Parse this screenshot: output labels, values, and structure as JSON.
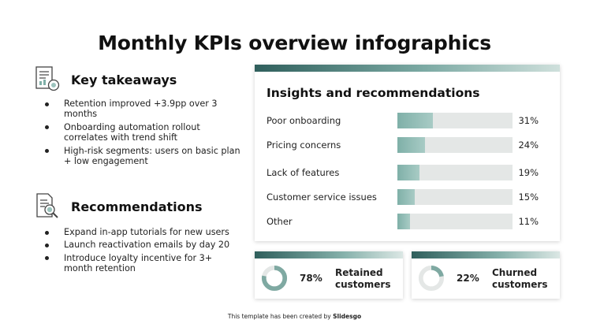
{
  "title": "Monthly KPIs overview infographics",
  "key_takeaways": {
    "heading": "Key takeaways",
    "icon": "report-icon",
    "items": [
      "Retention improved +3.9pp over 3 months",
      "Onboarding automation rollout correlates with trend shift",
      "High-risk segments: users on basic plan + low engagement"
    ]
  },
  "recommendations": {
    "heading": "Recommendations",
    "icon": "document-search-icon",
    "items": [
      "Expand in-app tutorials for new users",
      "Launch reactivation emails by day 20",
      "Introduce loyalty incentive for 3+ month retention"
    ]
  },
  "insights": {
    "title": "Insights and recommendations",
    "rows": [
      {
        "label": "Poor onboarding",
        "value": 31,
        "display": "31%"
      },
      {
        "label": "Pricing concerns",
        "value": 24,
        "display": "24%"
      },
      {
        "label": "Lack of features",
        "value": 19,
        "display": "19%"
      },
      {
        "label": "Customer service issues",
        "value": 15,
        "display": "15%"
      },
      {
        "label": "Other",
        "value": 11,
        "display": "11%"
      }
    ]
  },
  "stats": [
    {
      "value": 78,
      "display": "78%",
      "label": "Retained customers"
    },
    {
      "value": 22,
      "display": "22%",
      "label": "Churned customers"
    }
  ],
  "footer": {
    "prefix": "This template has been created by ",
    "brand": "Slidesgo"
  },
  "colors": {
    "accent_dark": "#2f5f5c",
    "accent": "#7fb0a8",
    "track": "#e4e7e6"
  }
}
